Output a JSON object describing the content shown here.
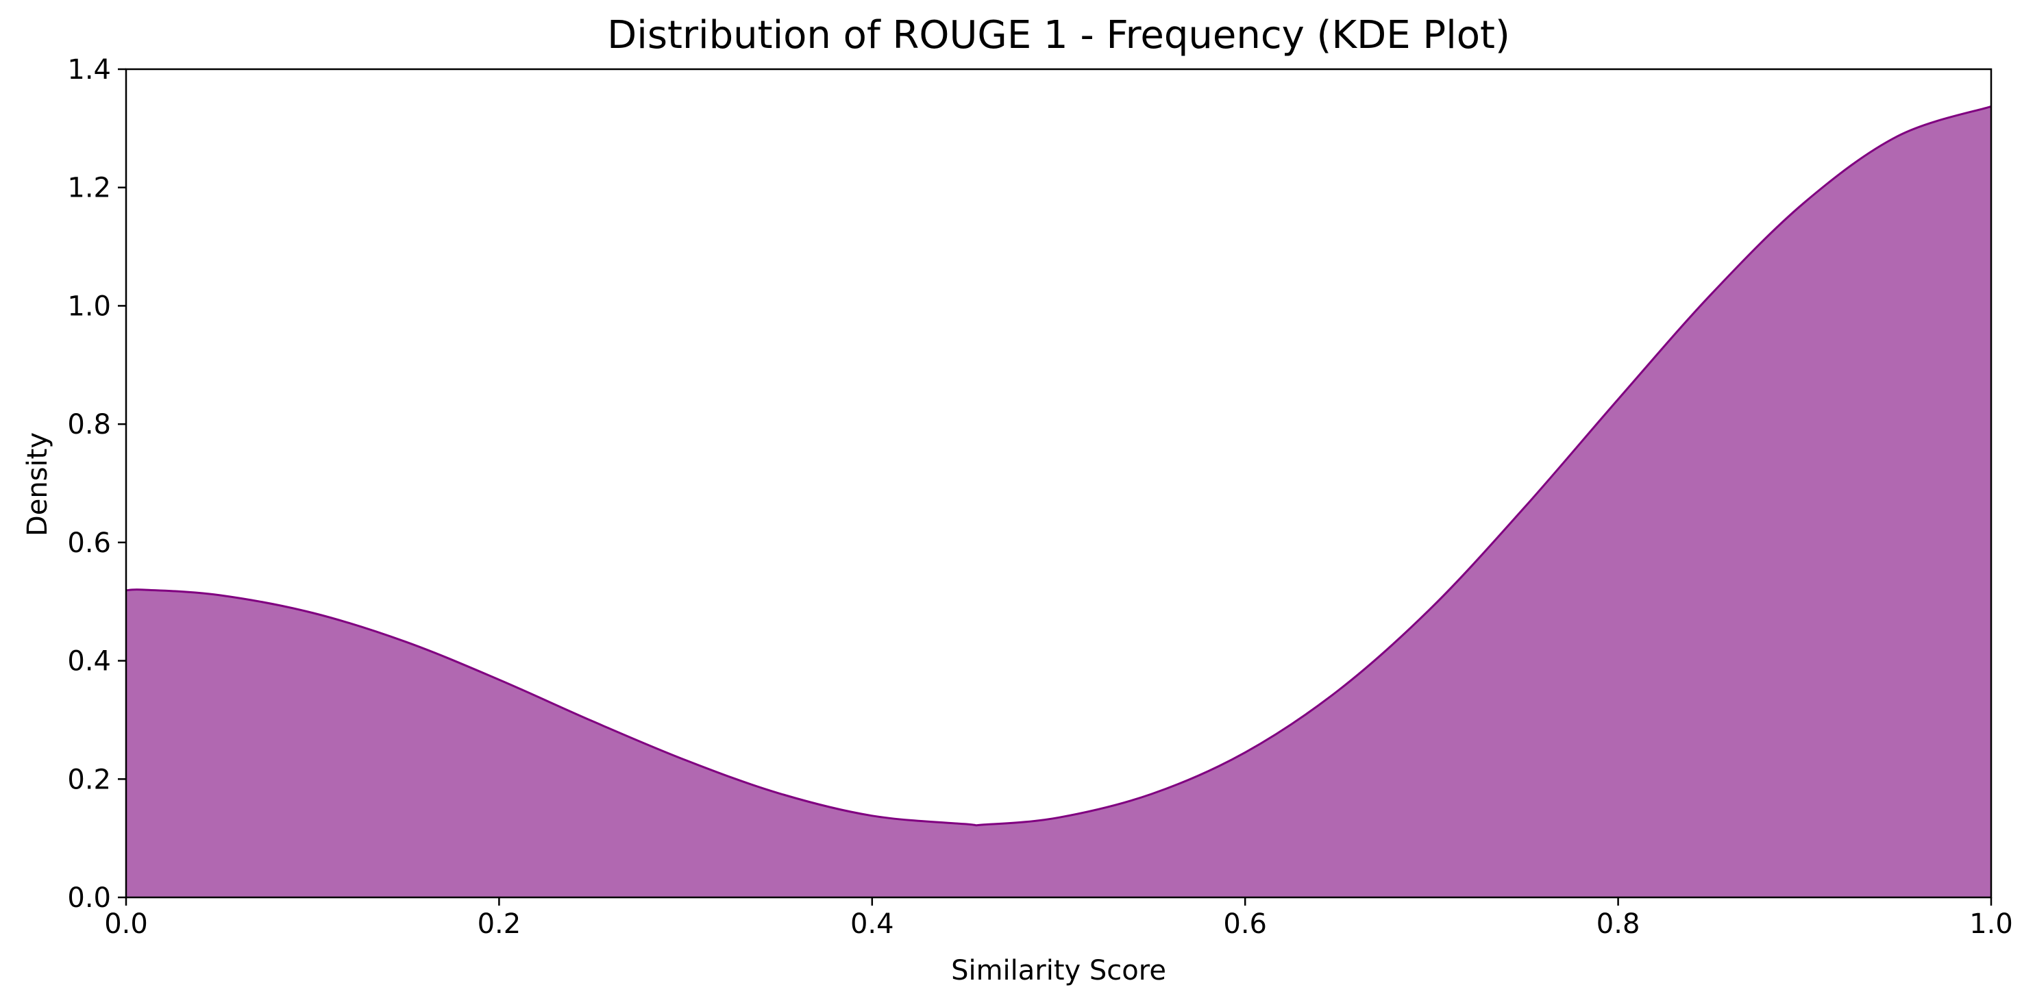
{
  "chart_data": {
    "type": "area",
    "title": "Distribution of ROUGE 1 - Frequency (KDE Plot)",
    "xlabel": "Similarity Score",
    "ylabel": "Density",
    "xlim": [
      0.0,
      1.0
    ],
    "ylim": [
      0.0,
      1.4
    ],
    "x_ticks": [
      "0.0",
      "0.2",
      "0.4",
      "0.6",
      "0.8",
      "1.0"
    ],
    "y_ticks": [
      "0.0",
      "0.2",
      "0.4",
      "0.6",
      "0.8",
      "1.0",
      "1.2",
      "1.4"
    ],
    "grid": false,
    "legend": "none",
    "fill_color": "#b168b1",
    "line_color": "#800080",
    "series": [
      {
        "x": [
          0.0,
          0.01,
          0.05,
          0.1,
          0.15,
          0.2,
          0.25,
          0.3,
          0.35,
          0.4,
          0.45,
          0.46,
          0.5,
          0.55,
          0.6,
          0.65,
          0.7,
          0.75,
          0.8,
          0.85,
          0.9,
          0.95,
          1.0
        ],
        "y": [
          0.519,
          0.52,
          0.511,
          0.481,
          0.432,
          0.368,
          0.298,
          0.232,
          0.176,
          0.138,
          0.124,
          0.123,
          0.135,
          0.175,
          0.245,
          0.35,
          0.49,
          0.66,
          0.842,
          1.02,
          1.175,
          1.287,
          1.337
        ]
      }
    ]
  }
}
